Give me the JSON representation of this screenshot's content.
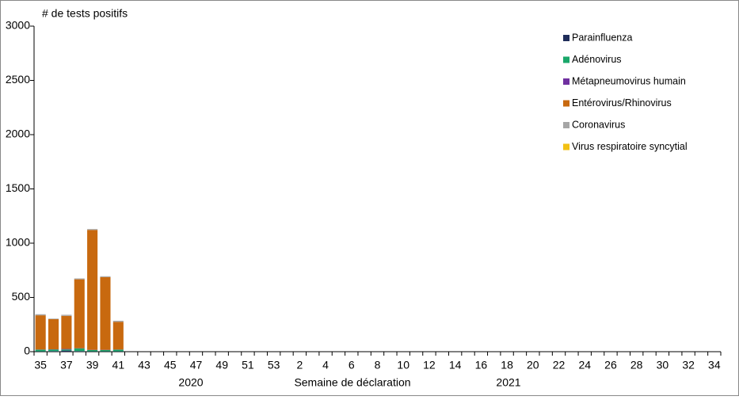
{
  "chart_data": {
    "type": "stacked-bar",
    "y_label": "# de tests positifs",
    "x_label": "Semaine de déclaration",
    "year_labels": [
      "2020",
      "2021"
    ],
    "categories": [
      "35",
      null,
      "37",
      null,
      "39",
      null,
      "41",
      null,
      "43",
      null,
      "45",
      null,
      "47",
      null,
      "49",
      null,
      "51",
      null,
      "53",
      null,
      "2",
      null,
      "4",
      null,
      "6",
      null,
      "8",
      null,
      "10",
      null,
      "12",
      null,
      "14",
      null,
      "16",
      null,
      "18",
      null,
      "20",
      null,
      "22",
      null,
      "24",
      null,
      "26",
      null,
      "28",
      null,
      "30",
      null,
      "32",
      null,
      "34"
    ],
    "ylim": [
      0,
      3000
    ],
    "yticks": [
      0,
      500,
      1000,
      1500,
      2000,
      2500,
      3000
    ],
    "grid": false,
    "legend": "top-right",
    "series": [
      {
        "name": "Parainfluenza",
        "color": "#1f2d5a",
        "values": [
          3,
          5,
          10,
          5,
          3,
          3,
          3,
          null,
          null,
          null,
          null,
          null,
          null,
          null,
          null,
          null,
          null,
          null,
          null,
          null,
          null,
          null,
          null,
          null,
          null,
          null,
          null,
          null,
          null,
          null,
          null,
          null,
          null,
          null,
          null,
          null,
          null,
          null,
          null,
          null,
          null,
          null,
          null,
          null,
          null,
          null,
          null,
          null,
          null,
          null,
          null,
          null,
          null
        ]
      },
      {
        "name": "Adénovirus",
        "color": "#1aa76a",
        "values": [
          15,
          15,
          10,
          25,
          12,
          12,
          15,
          null,
          null,
          null,
          null,
          null,
          null,
          null,
          null,
          null,
          null,
          null,
          null,
          null,
          null,
          null,
          null,
          null,
          null,
          null,
          null,
          null,
          null,
          null,
          null,
          null,
          null,
          null,
          null,
          null,
          null,
          null,
          null,
          null,
          null,
          null,
          null,
          null,
          null,
          null,
          null,
          null,
          null,
          null,
          null,
          null,
          null
        ]
      },
      {
        "name": "Métapneumovirus humain",
        "color": "#7030a0",
        "values": [
          2,
          2,
          5,
          2,
          2,
          2,
          2,
          null,
          null,
          null,
          null,
          null,
          null,
          null,
          null,
          null,
          null,
          null,
          null,
          null,
          null,
          null,
          null,
          null,
          null,
          null,
          null,
          null,
          null,
          null,
          null,
          null,
          null,
          null,
          null,
          null,
          null,
          null,
          null,
          null,
          null,
          null,
          null,
          null,
          null,
          null,
          null,
          null,
          null,
          null,
          null,
          null,
          null
        ]
      },
      {
        "name": "Entérovirus/Rhinovirus",
        "color": "#c8690f",
        "values": [
          315,
          278,
          305,
          635,
          1105,
          670,
          255,
          null,
          null,
          null,
          null,
          null,
          null,
          null,
          null,
          null,
          null,
          null,
          null,
          null,
          null,
          null,
          null,
          null,
          null,
          null,
          null,
          null,
          null,
          null,
          null,
          null,
          null,
          null,
          null,
          null,
          null,
          null,
          null,
          null,
          null,
          null,
          null,
          null,
          null,
          null,
          null,
          null,
          null,
          null,
          null,
          null,
          null
        ]
      },
      {
        "name": "Coronavirus",
        "color": "#a6a6a6",
        "values": [
          10,
          5,
          10,
          8,
          8,
          8,
          10,
          null,
          null,
          null,
          null,
          null,
          null,
          null,
          null,
          null,
          null,
          null,
          null,
          null,
          null,
          null,
          null,
          null,
          null,
          null,
          null,
          null,
          null,
          null,
          null,
          null,
          null,
          null,
          null,
          null,
          null,
          null,
          null,
          null,
          null,
          null,
          null,
          null,
          null,
          null,
          null,
          null,
          null,
          null,
          null,
          null,
          null
        ]
      },
      {
        "name": "Virus respiratoire syncytial",
        "color": "#f2c114",
        "values": [
          0,
          0,
          0,
          0,
          0,
          0,
          0,
          null,
          null,
          null,
          null,
          null,
          null,
          null,
          null,
          null,
          null,
          null,
          null,
          null,
          null,
          null,
          null,
          null,
          null,
          null,
          null,
          null,
          null,
          null,
          null,
          null,
          null,
          null,
          null,
          null,
          null,
          null,
          null,
          null,
          null,
          null,
          null,
          null,
          null,
          null,
          null,
          null,
          null,
          null,
          null,
          null,
          null
        ]
      }
    ]
  }
}
